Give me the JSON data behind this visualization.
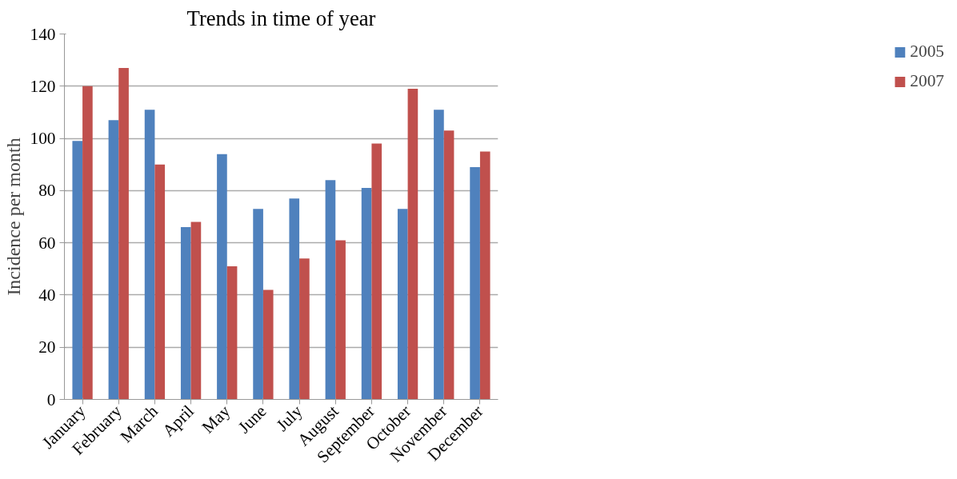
{
  "chart_data": {
    "type": "bar",
    "title": "Trends in time of year",
    "ylabel": "Incidence per month",
    "categories": [
      "January",
      "February",
      "March",
      "April",
      "May",
      "June",
      "July",
      "August",
      "September",
      "October",
      "November",
      "December"
    ],
    "series": [
      {
        "name": "2005",
        "color": "#4f81bd",
        "values": [
          99,
          107,
          111,
          66,
          94,
          73,
          77,
          84,
          81,
          73,
          111,
          89
        ]
      },
      {
        "name": "2007",
        "color": "#c0504d",
        "values": [
          120,
          127,
          90,
          68,
          51,
          42,
          54,
          61,
          98,
          119,
          103,
          95
        ]
      }
    ],
    "ylim": [
      0,
      140
    ],
    "yticks": [
      0,
      20,
      40,
      60,
      80,
      100,
      120,
      140
    ],
    "grid": "y",
    "legend": "right"
  }
}
